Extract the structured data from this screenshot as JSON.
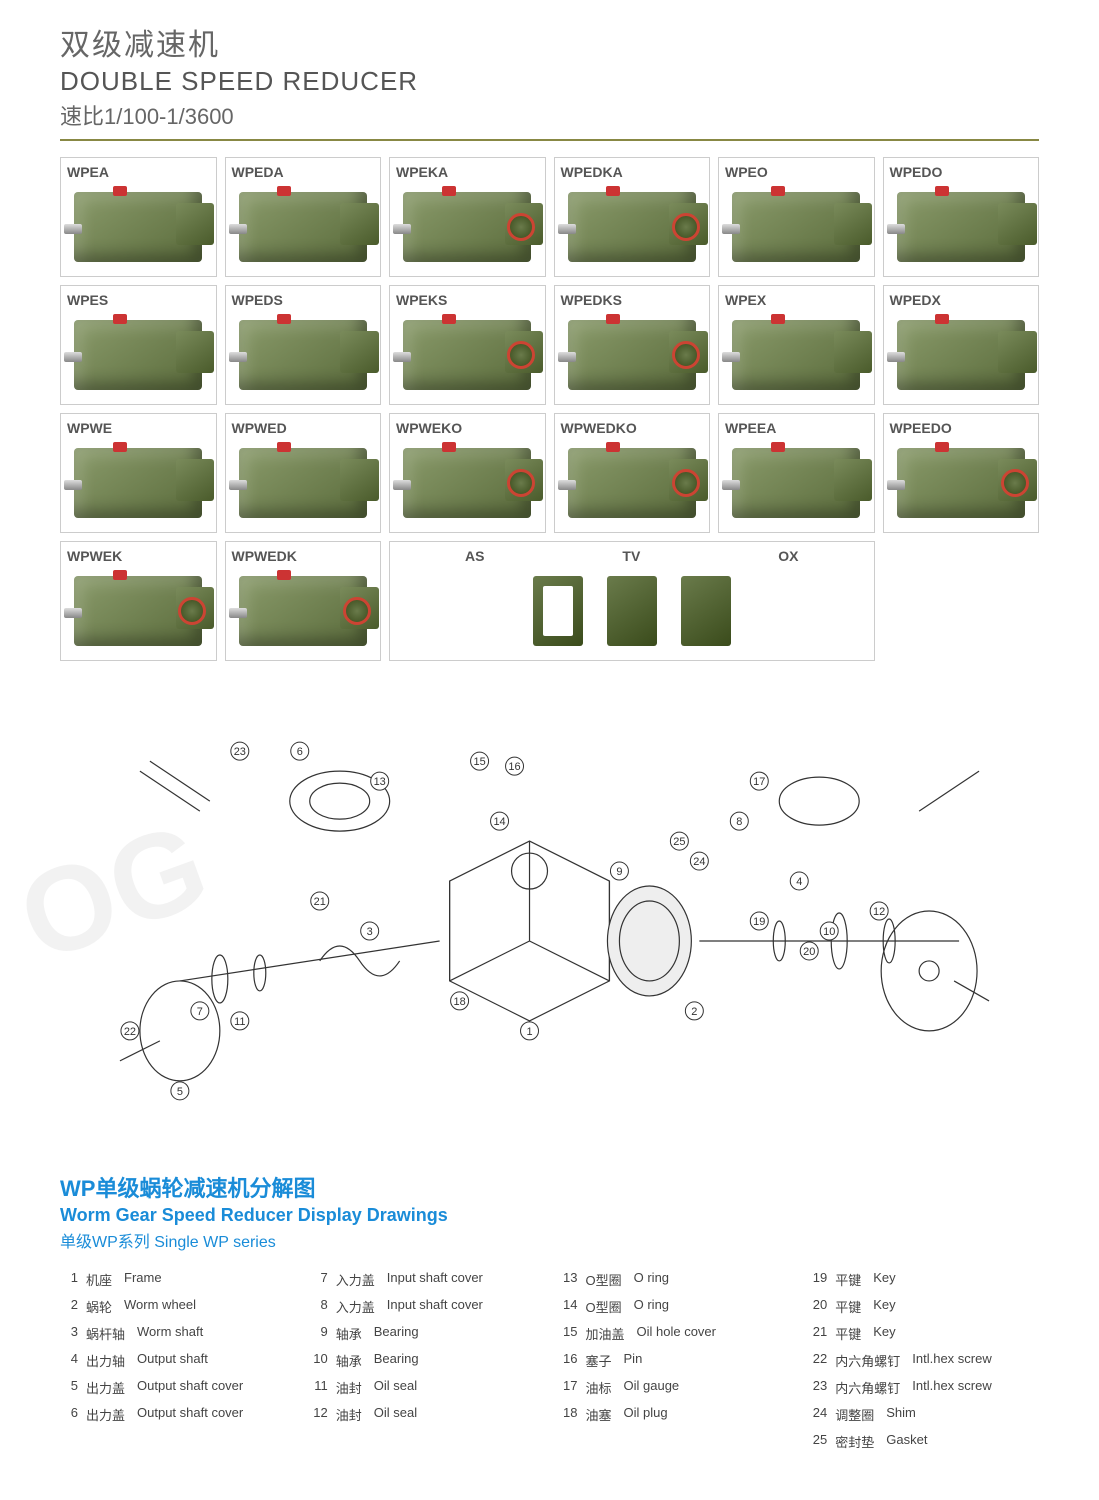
{
  "header": {
    "title_cn": "双级减速机",
    "title_en": "DOUBLE SPEED REDUCER",
    "subtitle": "速比1/100-1/3600"
  },
  "products": [
    {
      "label": "WPEA",
      "variant": "shaft-left"
    },
    {
      "label": "WPEDA",
      "variant": "shaft-left"
    },
    {
      "label": "WPEKA",
      "variant": "ring"
    },
    {
      "label": "WPEDKA",
      "variant": "ring"
    },
    {
      "label": "WPEO",
      "variant": "cap"
    },
    {
      "label": "WPEDO",
      "variant": "cap"
    },
    {
      "label": "WPES",
      "variant": "shaft-left"
    },
    {
      "label": "WPEDS",
      "variant": "shaft-left"
    },
    {
      "label": "WPEKS",
      "variant": "ring"
    },
    {
      "label": "WPEDKS",
      "variant": "ring"
    },
    {
      "label": "WPEX",
      "variant": "cap"
    },
    {
      "label": "WPEDX",
      "variant": "cap"
    },
    {
      "label": "WPWE",
      "variant": "shaft-left"
    },
    {
      "label": "WPWED",
      "variant": "shaft-left"
    },
    {
      "label": "WPWEKO",
      "variant": "ring"
    },
    {
      "label": "WPWEDKO",
      "variant": "ring"
    },
    {
      "label": "WPEEA",
      "variant": "plain"
    },
    {
      "label": "WPEEDO",
      "variant": "ring"
    },
    {
      "label": "WPWEK",
      "variant": "ring"
    },
    {
      "label": "WPWEDK",
      "variant": "ring"
    }
  ],
  "bracket_labels": [
    "AS",
    "TV",
    "OX"
  ],
  "diagram": {
    "callouts": [
      "1",
      "2",
      "3",
      "4",
      "5",
      "6",
      "7",
      "8",
      "9",
      "10",
      "11",
      "12",
      "13",
      "14",
      "15",
      "16",
      "17",
      "18",
      "19",
      "20",
      "21",
      "22",
      "23",
      "24",
      "25"
    ]
  },
  "legend": {
    "title_cn": "WP单级蜗轮减速机分解图",
    "title_en": "Worm Gear Speed Reducer Display Drawings",
    "subtitle": "单级WP系列 Single WP series"
  },
  "parts": [
    {
      "n": 1,
      "cn": "机座",
      "en": "Frame"
    },
    {
      "n": 2,
      "cn": "蜗轮",
      "en": "Worm wheel"
    },
    {
      "n": 3,
      "cn": "蜗杆轴",
      "en": "Worm shaft"
    },
    {
      "n": 4,
      "cn": "出力轴",
      "en": "Output shaft"
    },
    {
      "n": 5,
      "cn": "出力盖",
      "en": "Output shaft cover"
    },
    {
      "n": 6,
      "cn": "出力盖",
      "en": "Output shaft cover"
    },
    {
      "n": 7,
      "cn": "入力盖",
      "en": "Input shaft cover"
    },
    {
      "n": 8,
      "cn": "入力盖",
      "en": "Input shaft cover"
    },
    {
      "n": 9,
      "cn": "轴承",
      "en": "Bearing"
    },
    {
      "n": 10,
      "cn": "轴承",
      "en": "Bearing"
    },
    {
      "n": 11,
      "cn": "油封",
      "en": "Oil seal"
    },
    {
      "n": 12,
      "cn": "油封",
      "en": "Oil seal"
    },
    {
      "n": 13,
      "cn": "O型圈",
      "en": "O ring"
    },
    {
      "n": 14,
      "cn": "O型圈",
      "en": "O ring"
    },
    {
      "n": 15,
      "cn": "加油盖",
      "en": "Oil hole cover"
    },
    {
      "n": 16,
      "cn": "塞子",
      "en": "Pin"
    },
    {
      "n": 17,
      "cn": "油标",
      "en": "Oil gauge"
    },
    {
      "n": 18,
      "cn": "油塞",
      "en": "Oil plug"
    },
    {
      "n": 19,
      "cn": "平键",
      "en": "Key"
    },
    {
      "n": 20,
      "cn": "平键",
      "en": "Key"
    },
    {
      "n": 21,
      "cn": "平键",
      "en": "Key"
    },
    {
      "n": 22,
      "cn": "内六角螺钉",
      "en": "Intl.hex screw"
    },
    {
      "n": 23,
      "cn": "内六角螺钉",
      "en": "Intl.hex screw"
    },
    {
      "n": 24,
      "cn": "调整圈",
      "en": "Shim"
    },
    {
      "n": 25,
      "cn": "密封垫",
      "en": "Gasket"
    }
  ],
  "colors": {
    "accent": "#1a8cd8",
    "gearbox_light": "#8a9b6b",
    "gearbox_dark": "#5a6b3b",
    "accent_red": "#cc3333",
    "divider": "#888844"
  }
}
